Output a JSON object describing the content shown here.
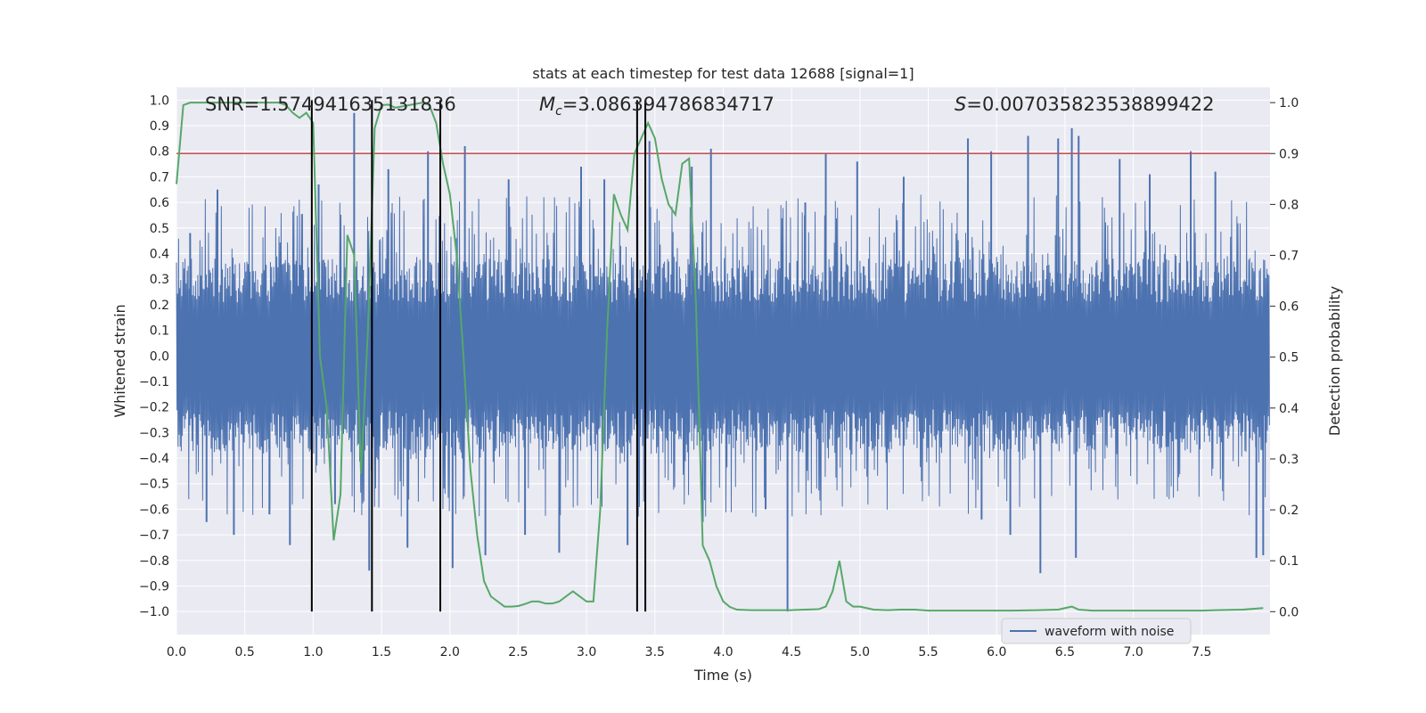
{
  "chart_data": {
    "type": "line",
    "title": "stats at each timestep for test data 12688 [signal=1]",
    "xlabel": "Time (s)",
    "ylabel_left": "Whitened strain",
    "ylabel_right": "Detection probability",
    "xlim": [
      0.0,
      8.0
    ],
    "ylim_left": [
      -1.09,
      1.05
    ],
    "ylim_right": [
      -0.045,
      1.03
    ],
    "x_ticks": [
      "0.0",
      "0.5",
      "1.0",
      "1.5",
      "2.0",
      "2.5",
      "3.0",
      "3.5",
      "4.0",
      "4.5",
      "5.0",
      "5.5",
      "6.0",
      "6.5",
      "7.0",
      "7.5"
    ],
    "x_tick_values": [
      0.0,
      0.5,
      1.0,
      1.5,
      2.0,
      2.5,
      3.0,
      3.5,
      4.0,
      4.5,
      5.0,
      5.5,
      6.0,
      6.5,
      7.0,
      7.5
    ],
    "y_left_ticks": [
      "1.0",
      "0.9",
      "0.8",
      "0.7",
      "0.6",
      "0.5",
      "0.4",
      "0.3",
      "0.2",
      "0.1",
      "0.0",
      "−0.1",
      "−0.2",
      "−0.3",
      "−0.4",
      "−0.5",
      "−0.6",
      "−0.7",
      "−0.8",
      "−0.9",
      "−1.0"
    ],
    "y_left_tick_values": [
      1.0,
      0.9,
      0.8,
      0.7,
      0.6,
      0.5,
      0.4,
      0.3,
      0.2,
      0.1,
      0.0,
      -0.1,
      -0.2,
      -0.3,
      -0.4,
      -0.5,
      -0.6,
      -0.7,
      -0.8,
      -0.9,
      -1.0
    ],
    "y_right_ticks": [
      "1.0",
      "0.9",
      "0.8",
      "0.7",
      "0.6",
      "0.5",
      "0.4",
      "0.3",
      "0.2",
      "0.1",
      "0.0"
    ],
    "y_right_tick_values": [
      1.0,
      0.9,
      0.8,
      0.7,
      0.6,
      0.5,
      0.4,
      0.3,
      0.2,
      0.1,
      0.0
    ],
    "annotations": {
      "snr": "SNR=1.574941635131836",
      "mc_symbol": "M",
      "mc_sub": "c",
      "mc_value": "=3.086394786834717",
      "s_symbol": "S",
      "s_value": "=0.007035823538899422"
    },
    "legend": {
      "label": "waveform with noise",
      "placement": "lower-right"
    },
    "threshold": {
      "value": 0.9,
      "axis": "right",
      "color": "#c44e52"
    },
    "vertical_markers": [
      0.99,
      1.43,
      1.93,
      3.37,
      3.43
    ],
    "waveform": {
      "name": "waveform with noise",
      "color": "#4c72b0",
      "approx_samples": 2048,
      "typical_amplitude": 0.38,
      "peak_values": [
        {
          "x": 0.1,
          "y": 0.48
        },
        {
          "x": 0.22,
          "y": -0.65
        },
        {
          "x": 0.3,
          "y": 0.65
        },
        {
          "x": 0.42,
          "y": -0.7
        },
        {
          "x": 0.68,
          "y": -0.62
        },
        {
          "x": 0.83,
          "y": -0.74
        },
        {
          "x": 1.04,
          "y": 0.67
        },
        {
          "x": 1.16,
          "y": -0.58
        },
        {
          "x": 1.3,
          "y": 0.95
        },
        {
          "x": 1.41,
          "y": -0.84
        },
        {
          "x": 1.55,
          "y": 0.73
        },
        {
          "x": 1.69,
          "y": -0.75
        },
        {
          "x": 1.84,
          "y": 0.8
        },
        {
          "x": 2.02,
          "y": -0.83
        },
        {
          "x": 2.11,
          "y": 0.82
        },
        {
          "x": 2.26,
          "y": -0.78
        },
        {
          "x": 2.43,
          "y": 0.69
        },
        {
          "x": 2.55,
          "y": -0.7
        },
        {
          "x": 2.8,
          "y": -0.77
        },
        {
          "x": 2.96,
          "y": 0.74
        },
        {
          "x": 3.13,
          "y": 0.69
        },
        {
          "x": 3.3,
          "y": -0.74
        },
        {
          "x": 3.46,
          "y": 0.84
        },
        {
          "x": 3.77,
          "y": 0.74
        },
        {
          "x": 3.85,
          "y": -0.65
        },
        {
          "x": 3.91,
          "y": 0.81
        },
        {
          "x": 4.31,
          "y": -0.6
        },
        {
          "x": 4.47,
          "y": -1.0
        },
        {
          "x": 4.6,
          "y": 0.6
        },
        {
          "x": 4.75,
          "y": 0.79
        },
        {
          "x": 4.98,
          "y": 0.76
        },
        {
          "x": 5.32,
          "y": 0.7
        },
        {
          "x": 5.79,
          "y": 0.85
        },
        {
          "x": 5.89,
          "y": -0.64
        },
        {
          "x": 5.96,
          "y": 0.8
        },
        {
          "x": 6.1,
          "y": -0.7
        },
        {
          "x": 6.23,
          "y": 0.86
        },
        {
          "x": 6.32,
          "y": -0.85
        },
        {
          "x": 6.45,
          "y": 0.85
        },
        {
          "x": 6.55,
          "y": 0.89
        },
        {
          "x": 6.58,
          "y": -0.79
        },
        {
          "x": 6.6,
          "y": 0.86
        },
        {
          "x": 6.9,
          "y": 0.77
        },
        {
          "x": 7.12,
          "y": 0.71
        },
        {
          "x": 7.42,
          "y": 0.8
        },
        {
          "x": 7.6,
          "y": 0.72
        },
        {
          "x": 7.9,
          "y": -0.79
        },
        {
          "x": 7.95,
          "y": -0.78
        }
      ]
    },
    "detection_probability": {
      "color": "#55a868",
      "x": [
        0.0,
        0.05,
        0.1,
        0.2,
        0.3,
        0.45,
        0.6,
        0.75,
        0.8,
        0.85,
        0.9,
        0.95,
        1.0,
        1.05,
        1.1,
        1.15,
        1.2,
        1.25,
        1.3,
        1.35,
        1.4,
        1.45,
        1.5,
        1.55,
        1.6,
        1.7,
        1.8,
        1.85,
        1.9,
        1.95,
        2.0,
        2.05,
        2.1,
        2.15,
        2.2,
        2.25,
        2.3,
        2.35,
        2.4,
        2.45,
        2.5,
        2.55,
        2.6,
        2.65,
        2.7,
        2.75,
        2.8,
        2.85,
        2.9,
        2.95,
        3.0,
        3.05,
        3.1,
        3.15,
        3.2,
        3.25,
        3.3,
        3.35,
        3.4,
        3.45,
        3.5,
        3.55,
        3.6,
        3.65,
        3.7,
        3.75,
        3.8,
        3.85,
        3.9,
        3.95,
        4.0,
        4.05,
        4.1,
        4.2,
        4.3,
        4.4,
        4.5,
        4.6,
        4.7,
        4.75,
        4.8,
        4.85,
        4.9,
        4.95,
        5.0,
        5.1,
        5.2,
        5.3,
        5.4,
        5.5,
        5.7,
        5.9,
        6.1,
        6.3,
        6.45,
        6.55,
        6.6,
        6.7,
        6.9,
        7.2,
        7.5,
        7.6,
        7.8,
        7.95
      ],
      "y": [
        0.84,
        0.995,
        1.0,
        1.0,
        1.0,
        1.0,
        1.0,
        1.0,
        0.995,
        0.98,
        0.97,
        0.98,
        0.96,
        0.5,
        0.4,
        0.14,
        0.23,
        0.74,
        0.7,
        0.27,
        0.55,
        0.95,
        0.995,
        0.996,
        0.99,
        0.995,
        1.0,
        0.995,
        0.96,
        0.88,
        0.82,
        0.7,
        0.5,
        0.28,
        0.15,
        0.06,
        0.03,
        0.02,
        0.01,
        0.01,
        0.011,
        0.015,
        0.02,
        0.02,
        0.016,
        0.016,
        0.02,
        0.03,
        0.04,
        0.03,
        0.02,
        0.02,
        0.2,
        0.55,
        0.82,
        0.78,
        0.75,
        0.9,
        0.93,
        0.96,
        0.93,
        0.85,
        0.8,
        0.78,
        0.88,
        0.89,
        0.61,
        0.13,
        0.1,
        0.05,
        0.02,
        0.009,
        0.004,
        0.003,
        0.003,
        0.003,
        0.003,
        0.004,
        0.005,
        0.01,
        0.04,
        0.1,
        0.02,
        0.01,
        0.01,
        0.004,
        0.003,
        0.004,
        0.004,
        0.002,
        0.002,
        0.002,
        0.002,
        0.003,
        0.004,
        0.01,
        0.004,
        0.002,
        0.002,
        0.002,
        0.002,
        0.003,
        0.004,
        0.007
      ]
    }
  }
}
